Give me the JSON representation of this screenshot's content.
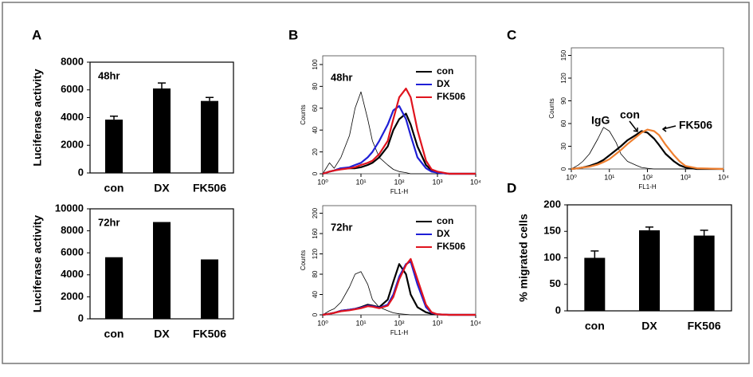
{
  "panel_labels": [
    "A",
    "B",
    "C",
    "D"
  ],
  "chart_data": [
    {
      "type": "bar",
      "annotation": "48hr",
      "ylabel": "Luciferase activity",
      "categories": [
        "con",
        "DX",
        "FK506"
      ],
      "values": [
        3850,
        6100,
        5200
      ],
      "errors": [
        250,
        400,
        250
      ],
      "color": "#000000",
      "ylim": [
        0,
        8000
      ],
      "yticks": [
        0,
        2000,
        4000,
        6000,
        8000
      ]
    },
    {
      "type": "bar",
      "annotation": "72hr",
      "ylabel": "Luciferase activity",
      "categories": [
        "con",
        "DX",
        "FK506"
      ],
      "values": [
        5600,
        8800,
        5400
      ],
      "color": "#000000",
      "ylim": [
        0,
        10000
      ],
      "yticks": [
        0,
        2000,
        4000,
        6000,
        8000,
        10000
      ]
    },
    {
      "type": "line",
      "annotation": "48hr",
      "xlabel": "FL1-H",
      "ylabel": "Counts",
      "xscale": "log",
      "legend": "upper right",
      "x": [
        1,
        1.5,
        2,
        3,
        5,
        7,
        10,
        15,
        20,
        30,
        50,
        70,
        100,
        150,
        200,
        300,
        500,
        700,
        1000,
        2000,
        10000
      ],
      "series": [
        {
          "color": "#000000",
          "values": [
            0,
            10,
            5,
            15,
            35,
            60,
            75,
            50,
            30,
            15,
            8,
            4,
            2,
            1,
            0,
            0,
            0,
            0,
            0,
            0,
            0
          ]
        },
        {
          "name": "con",
          "color": "#000000",
          "values": [
            0,
            2,
            3,
            5,
            5,
            5,
            6,
            8,
            10,
            15,
            25,
            40,
            50,
            55,
            45,
            25,
            8,
            3,
            1,
            0,
            0
          ]
        },
        {
          "name": "DX",
          "color": "#1f1fd6",
          "values": [
            0,
            2,
            3,
            5,
            6,
            8,
            10,
            15,
            20,
            30,
            45,
            58,
            62,
            50,
            35,
            15,
            5,
            2,
            1,
            0,
            0
          ]
        },
        {
          "name": "FK506",
          "color": "#e0141e",
          "values": [
            0,
            2,
            3,
            4,
            5,
            6,
            8,
            10,
            12,
            18,
            30,
            50,
            70,
            78,
            70,
            40,
            12,
            4,
            2,
            0,
            0
          ]
        }
      ],
      "xlim": [
        1,
        10000
      ],
      "xticks": [
        {
          "value": 1,
          "label": "10⁰"
        },
        {
          "value": 10,
          "label": "10¹"
        },
        {
          "value": 100,
          "label": "10²"
        },
        {
          "value": 1000,
          "label": "10³"
        },
        {
          "value": 10000,
          "label": "10⁴"
        }
      ],
      "ylim": [
        0,
        108
      ],
      "yticks": [
        0,
        20,
        40,
        60,
        80,
        100
      ]
    },
    {
      "type": "line",
      "annotation": "72hr",
      "xlabel": "FL1-H",
      "ylabel": "Counts",
      "xscale": "log",
      "legend": "upper right",
      "x": [
        1,
        1.5,
        2,
        3,
        5,
        7,
        10,
        15,
        20,
        30,
        50,
        70,
        100,
        150,
        200,
        300,
        500,
        700,
        1000,
        2000,
        10000
      ],
      "series": [
        {
          "color": "#000000",
          "values": [
            0,
            8,
            12,
            25,
            55,
            80,
            85,
            60,
            30,
            15,
            8,
            4,
            2,
            1,
            0,
            0,
            0,
            0,
            0,
            0,
            0
          ]
        },
        {
          "name": "con",
          "color": "#000000",
          "values": [
            0,
            2,
            4,
            8,
            10,
            12,
            15,
            20,
            18,
            15,
            30,
            65,
            100,
            80,
            40,
            15,
            5,
            2,
            1,
            0,
            0
          ]
        },
        {
          "name": "DX",
          "color": "#1f1fd6",
          "values": [
            0,
            2,
            4,
            8,
            10,
            12,
            14,
            18,
            17,
            14,
            20,
            40,
            75,
            100,
            105,
            60,
            15,
            4,
            1,
            0,
            0
          ]
        },
        {
          "name": "FK506",
          "color": "#e0141e",
          "values": [
            0,
            2,
            4,
            7,
            9,
            11,
            13,
            17,
            16,
            13,
            18,
            35,
            70,
            98,
            110,
            70,
            20,
            5,
            1,
            0,
            0
          ]
        }
      ],
      "xlim": [
        1,
        10000
      ],
      "xticks": [
        {
          "value": 1,
          "label": "10⁰"
        },
        {
          "value": 10,
          "label": "10¹"
        },
        {
          "value": 100,
          "label": "10²"
        },
        {
          "value": 1000,
          "label": "10³"
        },
        {
          "value": 10000,
          "label": "10⁴"
        }
      ],
      "ylim": [
        0,
        215
      ],
      "yticks": [
        0,
        40,
        80,
        120,
        160,
        200
      ]
    },
    {
      "type": "line",
      "xlabel": "FL1-H",
      "ylabel": "Counts",
      "xscale": "log",
      "x": [
        1,
        1.5,
        2,
        3,
        5,
        7,
        10,
        15,
        20,
        30,
        50,
        70,
        100,
        150,
        200,
        300,
        500,
        700,
        1000,
        2000,
        10000
      ],
      "series": [
        {
          "name": "IgG",
          "color": "#000000",
          "values": [
            0,
            5,
            10,
            20,
            40,
            55,
            50,
            35,
            20,
            10,
            5,
            2,
            1,
            0,
            0,
            0,
            0,
            0,
            0,
            0,
            0
          ]
        },
        {
          "name": "con",
          "color": "#000000",
          "values": [
            0,
            1,
            2,
            4,
            8,
            12,
            18,
            25,
            30,
            38,
            45,
            50,
            48,
            40,
            32,
            20,
            10,
            5,
            2,
            0,
            0
          ]
        },
        {
          "name": "FK506",
          "color": "#f08030",
          "values": [
            0,
            1,
            2,
            3,
            6,
            9,
            13,
            20,
            25,
            33,
            42,
            48,
            52,
            50,
            45,
            32,
            18,
            10,
            4,
            1,
            0
          ]
        }
      ],
      "xlim": [
        1,
        10000
      ],
      "xticks": [
        {
          "value": 1,
          "label": "10⁰"
        },
        {
          "value": 10,
          "label": "10¹"
        },
        {
          "value": 100,
          "label": "10²"
        },
        {
          "value": 1000,
          "label": "10³"
        },
        {
          "value": 10000,
          "label": "10⁴"
        }
      ],
      "ylim": [
        0,
        160
      ],
      "yticks": [
        0,
        30,
        60,
        90,
        120,
        150
      ]
    },
    {
      "type": "bar",
      "ylabel": "% migrated cells",
      "categories": [
        "con",
        "DX",
        "FK506"
      ],
      "values": [
        100,
        152,
        142
      ],
      "errors": [
        13,
        6,
        10
      ],
      "color": "#000000",
      "ylim": [
        0,
        200
      ],
      "yticks": [
        0,
        50,
        100,
        150,
        200
      ]
    }
  ]
}
